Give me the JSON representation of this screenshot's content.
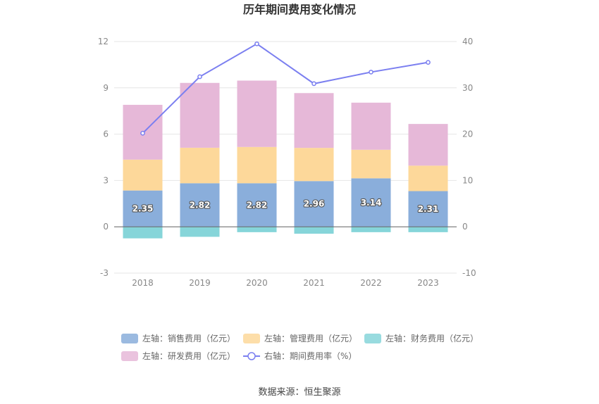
{
  "chart_data": {
    "type": "bar",
    "title": "历年期间费用变化情况",
    "categories": [
      "2018",
      "2019",
      "2020",
      "2021",
      "2022",
      "2023"
    ],
    "left_axis": {
      "ylim": [
        -3,
        12
      ],
      "ticks": [
        "-3",
        "0",
        "3",
        "6",
        "9",
        "12"
      ]
    },
    "right_axis": {
      "ylim": [
        -10,
        40
      ],
      "ticks": [
        "-10",
        "0",
        "10",
        "20",
        "30",
        "40"
      ]
    },
    "series": [
      {
        "name": "左轴：销售费用（亿元）",
        "type": "bar",
        "axis": "left",
        "color": "#8aaedb",
        "values": [
          2.35,
          2.82,
          2.82,
          2.96,
          3.14,
          2.31
        ],
        "labels": [
          "2.35",
          "2.82",
          "2.82",
          "2.96",
          "3.14",
          "2.31"
        ]
      },
      {
        "name": "左轴：管理费用（亿元）",
        "type": "bar",
        "axis": "left",
        "color": "#fdd89a",
        "values": [
          2.0,
          2.3,
          2.35,
          2.15,
          1.85,
          1.65
        ]
      },
      {
        "name": "左轴：财务费用（亿元）",
        "type": "bar",
        "axis": "left",
        "color": "#86d5d9",
        "values": [
          -0.75,
          -0.65,
          -0.35,
          -0.45,
          -0.35,
          -0.35
        ]
      },
      {
        "name": "左轴：研发费用（亿元）",
        "type": "bar",
        "axis": "left",
        "color": "#e6b8d8",
        "values": [
          3.55,
          4.2,
          4.3,
          3.55,
          3.05,
          2.7
        ]
      },
      {
        "name": "右轴：期间费用率（%）",
        "type": "line",
        "axis": "right",
        "color": "#7b7ff0",
        "values": [
          20.2,
          32.4,
          39.5,
          30.9,
          33.4,
          35.5
        ]
      }
    ],
    "legend_position": "bottom",
    "grid": true
  },
  "source_text": "数据来源：恒生聚源"
}
